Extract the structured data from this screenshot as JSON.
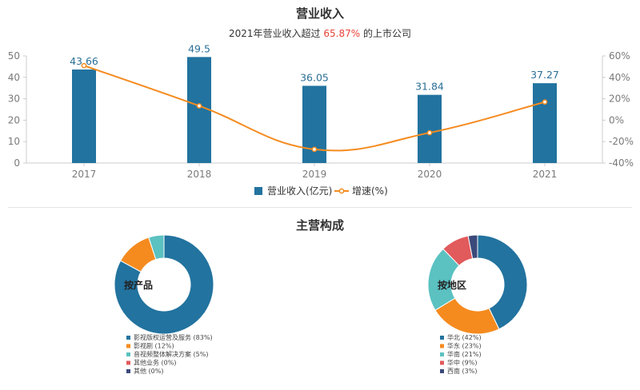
{
  "header": {
    "title": "营业收入",
    "subtitle_prefix": "2021年营业收入超过 ",
    "subtitle_highlight": "65.87%",
    "subtitle_suffix": " 的上市公司"
  },
  "section2": {
    "title": "主营构成"
  },
  "colors": {
    "bar": "#22739f",
    "line": "#f58b1f",
    "axis": "#cccccc",
    "slice": [
      "#22739f",
      "#f58b1f",
      "#5bc1c1",
      "#e15a5c",
      "#3b4a7a"
    ]
  },
  "chart_data": [
    {
      "type": "bar",
      "categories": [
        "2017",
        "2018",
        "2019",
        "2020",
        "2021"
      ],
      "series": [
        {
          "name": "营业收入(亿元)",
          "type": "bar",
          "axis": "left",
          "values": [
            43.66,
            49.5,
            36.05,
            31.84,
            37.27
          ],
          "labels": [
            "43.66",
            "49.5",
            "36.05",
            "31.84",
            "37.27"
          ]
        },
        {
          "name": "增速(%)",
          "type": "line",
          "axis": "right",
          "values": [
            51,
            13.4,
            -27.2,
            -11.7,
            17
          ]
        }
      ],
      "yAxisLeft": {
        "min": 0,
        "max": 50,
        "ticks": [
          "0",
          "10",
          "20",
          "30",
          "40",
          "50"
        ]
      },
      "yAxisRight": {
        "min": -40,
        "max": 60,
        "ticks": [
          "-40%",
          "-20%",
          "0%",
          "20%",
          "40%",
          "60%"
        ]
      },
      "legend": "bottom-center"
    },
    {
      "type": "pie",
      "center_label": "按产品",
      "slices": [
        {
          "label": "影视版权运营及服务 (83%)",
          "value": 83
        },
        {
          "label": "影视剧 (12%)",
          "value": 12
        },
        {
          "label": "音视频整体解决方案 (5%)",
          "value": 5
        },
        {
          "label": "其他业务 (0%)",
          "value": 0
        },
        {
          "label": "其他 (0%)",
          "value": 0
        }
      ]
    },
    {
      "type": "pie",
      "center_label": "按地区",
      "slices": [
        {
          "label": "华北 (42%)",
          "value": 42
        },
        {
          "label": "华东 (23%)",
          "value": 23
        },
        {
          "label": "华南 (21%)",
          "value": 21
        },
        {
          "label": "华中 (9%)",
          "value": 9
        },
        {
          "label": "西南 (3%)",
          "value": 3
        }
      ]
    }
  ]
}
